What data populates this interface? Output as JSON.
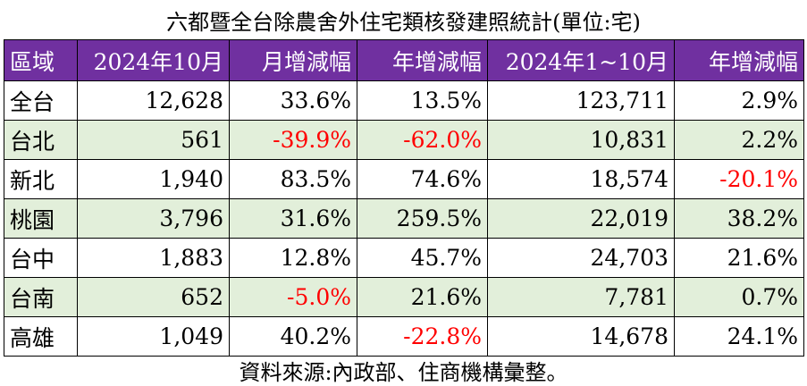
{
  "title": "六都暨全台除農舍外住宅類核發建照統計(單位:宅)",
  "headers": [
    "區域",
    "2024年10月",
    "月增減幅",
    "年增減幅",
    "2024年1~10月",
    "年增減幅"
  ],
  "rows": [
    {
      "region": "全台",
      "oct": "12,628",
      "mom": "33.6%",
      "yoy": "13.5%",
      "ytd": "123,711",
      "ytd_yoy": "2.9%"
    },
    {
      "region": "台北",
      "oct": "561",
      "mom": "-39.9%",
      "yoy": "-62.0%",
      "ytd": "10,831",
      "ytd_yoy": "2.2%"
    },
    {
      "region": "新北",
      "oct": "1,940",
      "mom": "83.5%",
      "yoy": "74.6%",
      "ytd": "18,574",
      "ytd_yoy": "-20.1%"
    },
    {
      "region": "桃園",
      "oct": "3,796",
      "mom": "31.6%",
      "yoy": "259.5%",
      "ytd": "22,019",
      "ytd_yoy": "38.2%"
    },
    {
      "region": "台中",
      "oct": "1,883",
      "mom": "12.8%",
      "yoy": "45.7%",
      "ytd": "24,703",
      "ytd_yoy": "21.6%"
    },
    {
      "region": "台南",
      "oct": "652",
      "mom": "-5.0%",
      "yoy": "21.6%",
      "ytd": "7,781",
      "ytd_yoy": "0.7%"
    },
    {
      "region": "高雄",
      "oct": "1,049",
      "mom": "40.2%",
      "yoy": "-22.8%",
      "ytd": "14,678",
      "ytd_yoy": "24.1%"
    }
  ],
  "source": "資料來源:內政部、住商機構彙整。",
  "colors": {
    "header_bg": "#7030a0",
    "header_text": "#ffffff",
    "shaded_row": "#e2efda",
    "negative": "#ff0000"
  }
}
